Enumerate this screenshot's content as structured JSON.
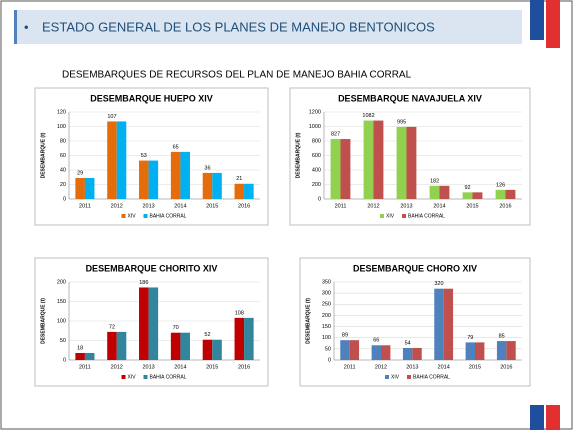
{
  "header": {
    "bullet": "•",
    "title": "ESTADO GENERAL DE LOS PLANES DE MANEJO BENTONICOS"
  },
  "subtitle": "DESEMBARQUES DE RECURSOS DEL PLAN DE MANEJO BAHIA CORRAL",
  "chart_data": [
    {
      "type": "bar",
      "title": "DESEMBARQUE HUEPO XIV",
      "y_label": "DESEMBARQUE (t)",
      "categories": [
        "2011",
        "2012",
        "2013",
        "2014",
        "2015",
        "2016"
      ],
      "series": [
        {
          "name": "XIV",
          "color": "#e46c0a",
          "values": [
            29,
            107,
            53,
            65,
            36,
            21
          ]
        },
        {
          "name": "BAHIA CORRAL",
          "color": "#00b0f0",
          "values": [
            29,
            107,
            53,
            65,
            36,
            21
          ]
        }
      ],
      "ylim": [
        0,
        120
      ],
      "yticks": [
        0,
        20,
        40,
        60,
        80,
        100,
        120
      ],
      "grid": true
    },
    {
      "type": "bar",
      "title": "DESEMBARQUE NAVAJUELA XIV",
      "y_label": "DESEMBARQUE (t)",
      "categories": [
        "2011",
        "2012",
        "2013",
        "2014",
        "2015",
        "2016"
      ],
      "series": [
        {
          "name": "XIV",
          "color": "#92d050",
          "values": [
            827,
            1082,
            995,
            182,
            92,
            126
          ]
        },
        {
          "name": "BAHIA CORRAL",
          "color": "#c0504d",
          "values": [
            827,
            1082,
            995,
            182,
            92,
            126
          ]
        }
      ],
      "ylim": [
        0,
        1200
      ],
      "yticks": [
        0,
        200,
        400,
        600,
        800,
        1000,
        1200
      ],
      "grid": true
    },
    {
      "type": "bar",
      "title": "DESEMBARQUE CHORITO XIV",
      "y_label": "DESEMBARQUE (t)",
      "categories": [
        "2011",
        "2012",
        "2013",
        "2014",
        "2015",
        "2016"
      ],
      "series": [
        {
          "name": "XIV",
          "color": "#c00000",
          "values": [
            18,
            72,
            186,
            70,
            52,
            108
          ]
        },
        {
          "name": "BAHIA CORRAL",
          "color": "#31859c",
          "values": [
            18,
            72,
            186,
            70,
            52,
            108
          ]
        }
      ],
      "ylim": [
        0,
        200
      ],
      "yticks": [
        0,
        50,
        100,
        150,
        200
      ],
      "grid": true
    },
    {
      "type": "bar",
      "title": "DESEMBARQUE CHORO XIV",
      "y_label": "DESEMBARQUE (t)",
      "categories": [
        "2011",
        "2012",
        "2013",
        "2014",
        "2015",
        "2016"
      ],
      "series": [
        {
          "name": "XIV",
          "color": "#4f81bd",
          "values": [
            89,
            66,
            54,
            320,
            79,
            85
          ]
        },
        {
          "name": "BAHIA CORRAL",
          "color": "#c0504d",
          "values": [
            89,
            66,
            54,
            320,
            79,
            85
          ]
        }
      ],
      "ylim": [
        0,
        350
      ],
      "yticks": [
        0,
        50,
        100,
        150,
        200,
        250,
        300,
        350
      ],
      "grid": true
    }
  ]
}
